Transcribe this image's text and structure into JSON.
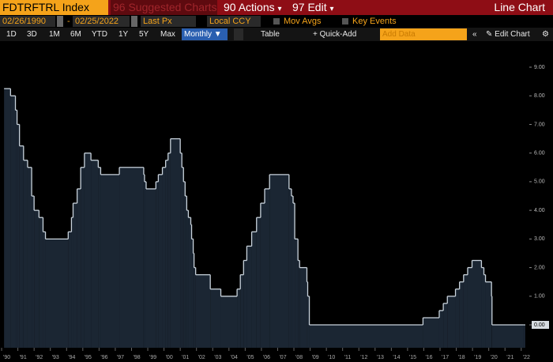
{
  "toolbar": {
    "ticker": "FDTRFTRL Index",
    "suggested": {
      "num": "96",
      "label": "Suggested Charts"
    },
    "actions": {
      "num": "90",
      "label": "Actions"
    },
    "edit": {
      "num": "97",
      "label": "Edit"
    },
    "view": "Line Chart"
  },
  "controls": {
    "start_date": "02/26/1990",
    "separator": "-",
    "end_date": "02/25/2022",
    "field": "Last Px",
    "currency": "Local CCY",
    "mov_avgs": "Mov Avgs",
    "key_events": "Key Events"
  },
  "periods": {
    "buttons": [
      "1D",
      "3D",
      "1M",
      "6M",
      "YTD",
      "1Y",
      "5Y",
      "Max"
    ],
    "frequency": "Monthly",
    "table": "Table",
    "quick_add": "+ Quick-Add",
    "add_data": "Add Data",
    "edit_chart": "Edit Chart"
  },
  "chart_data": {
    "type": "line",
    "step": true,
    "series": [
      {
        "name": "FDTRFTRL Index",
        "color": "#c9d3dc",
        "fill": "#1b2633",
        "x": [
          1990.15,
          1990.55,
          1990.85,
          1990.95,
          1991.1,
          1991.35,
          1991.6,
          1991.85,
          1992.0,
          1992.3,
          1992.55,
          1992.7,
          1994.1,
          1994.3,
          1994.4,
          1994.65,
          1994.87,
          1995.1,
          1995.5,
          1995.95,
          1996.1,
          1997.25,
          1998.75,
          1998.8,
          1998.9,
          1999.5,
          1999.65,
          1999.9,
          2000.1,
          2000.25,
          2000.4,
          2001.0,
          2001.1,
          2001.2,
          2001.3,
          2001.4,
          2001.5,
          2001.65,
          2001.7,
          2001.8,
          2001.85,
          2001.95,
          2002.85,
          2003.5,
          2004.5,
          2004.7,
          2004.9,
          2005.1,
          2005.4,
          2005.7,
          2005.95,
          2006.2,
          2006.5,
          2007.7,
          2007.85,
          2007.95,
          2008.05,
          2008.25,
          2008.35,
          2008.8,
          2008.85,
          2008.95,
          2015.95,
          2016.95,
          2017.2,
          2017.45,
          2017.95,
          2018.2,
          2018.45,
          2018.7,
          2018.97,
          2019.55,
          2019.7,
          2019.8,
          2020.17,
          2020.2,
          2022.15
        ],
        "values": [
          8.25,
          8.0,
          7.5,
          7.0,
          6.25,
          5.75,
          5.5,
          4.5,
          4.0,
          3.75,
          3.25,
          3.0,
          3.25,
          3.75,
          4.25,
          4.75,
          5.5,
          6.0,
          5.75,
          5.5,
          5.25,
          5.5,
          5.25,
          5.0,
          4.75,
          5.0,
          5.25,
          5.5,
          5.75,
          6.0,
          6.5,
          6.0,
          5.5,
          5.0,
          4.5,
          4.0,
          3.75,
          3.5,
          3.0,
          2.5,
          2.0,
          1.75,
          1.25,
          1.0,
          1.25,
          1.75,
          2.25,
          2.75,
          3.25,
          3.75,
          4.25,
          4.75,
          5.25,
          4.75,
          4.5,
          4.25,
          3.0,
          2.25,
          2.0,
          1.5,
          1.0,
          0.0,
          0.25,
          0.5,
          0.75,
          1.0,
          1.25,
          1.5,
          1.75,
          2.0,
          2.25,
          2.0,
          1.75,
          1.5,
          1.0,
          0.0,
          0.0
        ]
      }
    ],
    "xlim": [
      1989.9,
      2022.4
    ],
    "xticks": [
      {
        "value": 1990,
        "label": "'90"
      },
      {
        "value": 1991,
        "label": "'91"
      },
      {
        "value": 1992,
        "label": "'92"
      },
      {
        "value": 1993,
        "label": "'93"
      },
      {
        "value": 1994,
        "label": "'94"
      },
      {
        "value": 1995,
        "label": "'95"
      },
      {
        "value": 1996,
        "label": "'96"
      },
      {
        "value": 1997,
        "label": "'97"
      },
      {
        "value": 1998,
        "label": "'98"
      },
      {
        "value": 1999,
        "label": "'99"
      },
      {
        "value": 2000,
        "label": "'00"
      },
      {
        "value": 2001,
        "label": "'01"
      },
      {
        "value": 2002,
        "label": "'02"
      },
      {
        "value": 2003,
        "label": "'03"
      },
      {
        "value": 2004,
        "label": "'04"
      },
      {
        "value": 2005,
        "label": "'05"
      },
      {
        "value": 2006,
        "label": "'06"
      },
      {
        "value": 2007,
        "label": "'07"
      },
      {
        "value": 2008,
        "label": "'08"
      },
      {
        "value": 2009,
        "label": "'09"
      },
      {
        "value": 2010,
        "label": "'10"
      },
      {
        "value": 2011,
        "label": "'11"
      },
      {
        "value": 2012,
        "label": "'12"
      },
      {
        "value": 2013,
        "label": "'13"
      },
      {
        "value": 2014,
        "label": "'14"
      },
      {
        "value": 2015,
        "label": "'15"
      },
      {
        "value": 2016,
        "label": "'16"
      },
      {
        "value": 2017,
        "label": "'17"
      },
      {
        "value": 2018,
        "label": "'18"
      },
      {
        "value": 2019,
        "label": "'19"
      },
      {
        "value": 2020,
        "label": "'20"
      },
      {
        "value": 2021,
        "label": "'21"
      },
      {
        "value": 2022,
        "label": "'22"
      }
    ],
    "ylim": [
      -0.8,
      9.0
    ],
    "yticks": [
      {
        "value": 0,
        "label": "0.00"
      },
      {
        "value": 1,
        "label": "1.00"
      },
      {
        "value": 2,
        "label": "2.00"
      },
      {
        "value": 3,
        "label": "3.00"
      },
      {
        "value": 4,
        "label": "4.00"
      },
      {
        "value": 5,
        "label": "5.00"
      },
      {
        "value": 6,
        "label": "6.00"
      },
      {
        "value": 7,
        "label": "7.00"
      },
      {
        "value": 8,
        "label": "8.00"
      },
      {
        "value": 9,
        "label": "9.00"
      }
    ],
    "last_price": {
      "value": 0,
      "label": "0.00"
    }
  }
}
